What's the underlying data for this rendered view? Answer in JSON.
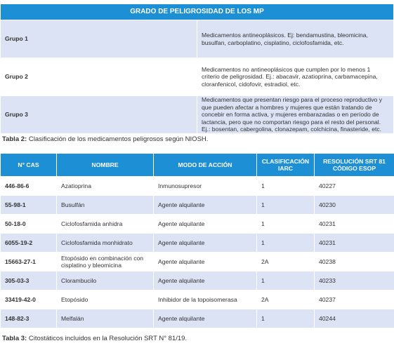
{
  "table1": {
    "title": "GRADO DE PELIGROSIDAD DE LOS MP",
    "rows": [
      [
        "Grupo 1",
        "Medicamentos antineoplásicos. Ej: bendamustina, bleomicina, busulfan, carboplatino, cisplatino, ciclofosfamida, etc."
      ],
      [
        "Grupo 2",
        "Medicamentos no antineoplásicos que cumplen por lo menos 1 criterio de peligrosidad. Ej.: abacavir, azatioprina, carbamacepina, cloranfenicol, cidofovir, estradiol, etc."
      ],
      [
        "Grupo 3",
        "Medicamentos que presentan riesgo para el proceso reproductivo y que pueden afectar a hombres y mujeres que están tratando de concebir en forma activa, y mujeres embarazadas o en período de lactancia, pero que no comportan riesgo para el resto del personal. Ej.: bosentan, cabergolina, clonazepam, colchicina, finasteride, etc."
      ]
    ]
  },
  "caption1": {
    "label": "Tabla 2:",
    "text": "Clasificación de los medicamentos peligrosos según NIOSH."
  },
  "table2": {
    "headers": [
      "N° CAS",
      "NOMBRE",
      "MODO DE ACCIÓN",
      "CLASIFICACIÓN IARC",
      "RESOLUCIÓN SRT 81 CÓDIGO ESOP"
    ],
    "rows": [
      [
        "446-86-6",
        "Azatioprina",
        "Inmunosupresor",
        "1",
        "40227"
      ],
      [
        "55-98-1",
        "Busulfán",
        "Agente alquilante",
        "1",
        "40230"
      ],
      [
        "50-18-0",
        "Ciclofosfamida anhidra",
        "Agente alquilante",
        "1",
        "40231"
      ],
      [
        "6055-19-2",
        "Ciclofosfamida monhidrato",
        "Agente alquilante",
        "1",
        "40231"
      ],
      [
        "15663-27-1",
        "Etopósido en combinación con cisplatino y bleomicina",
        "Agente alquilante",
        "2A",
        "40238"
      ],
      [
        "305-03-3",
        "Clorambucilo",
        "Agente alquilante",
        "1",
        "40233"
      ],
      [
        "33419-42-0",
        "Etopósido",
        "Inhibidor de la topoisomerasa",
        "2A",
        "40237"
      ],
      [
        "148-82-3",
        "Melfalán",
        "Agente alquilante",
        "1",
        "40244"
      ]
    ]
  },
  "caption2": {
    "label": "Tabla 3:",
    "text": "Citostáticos incluidos en la Resolución SRT N° 81/19."
  }
}
